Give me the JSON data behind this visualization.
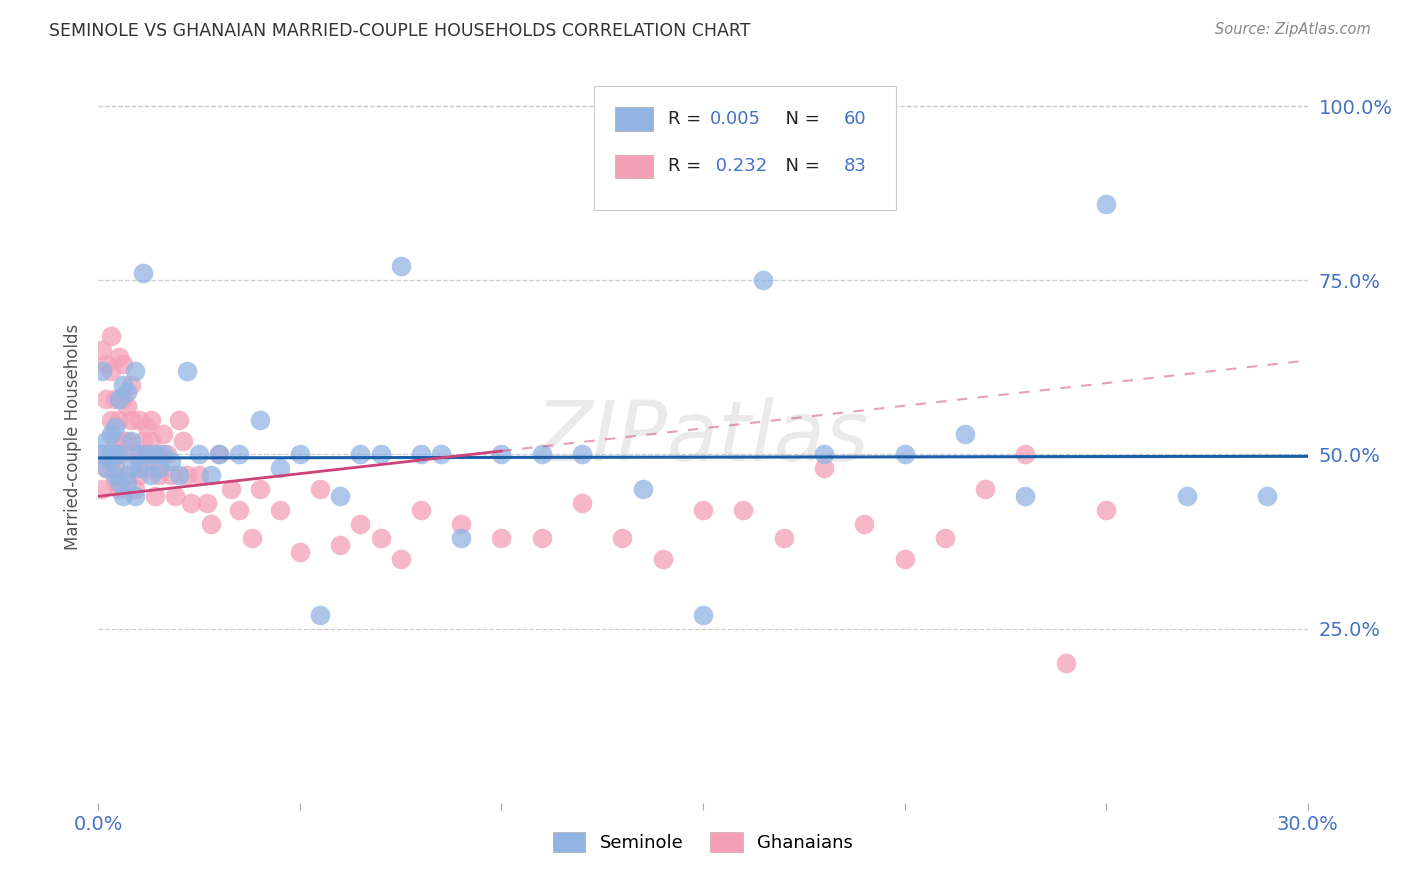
{
  "title": "SEMINOLE VS GHANAIAN MARRIED-COUPLE HOUSEHOLDS CORRELATION CHART",
  "source": "Source: ZipAtlas.com",
  "ylabel": "Married-couple Households",
  "xlim": [
    0.0,
    0.3
  ],
  "ylim": [
    0.0,
    1.05
  ],
  "ytick_labels": [
    "25.0%",
    "50.0%",
    "75.0%",
    "100.0%"
  ],
  "ytick_positions": [
    0.25,
    0.5,
    0.75,
    1.0
  ],
  "grid_color": "#cccccc",
  "background_color": "#ffffff",
  "seminole_color": "#92b4e3",
  "ghanaian_color": "#f4a0b8",
  "seminole_line_color": "#1a5fa8",
  "ghanaian_line_color": "#cc4477",
  "label_color": "#4472c4",
  "R_seminole": 0.005,
  "N_seminole": 60,
  "R_ghanaian": 0.232,
  "N_ghanaian": 83,
  "legend_label_seminole": "Seminole",
  "legend_label_ghanaian": "Ghanaians",
  "seminole_x": [
    0.001,
    0.001,
    0.002,
    0.002,
    0.003,
    0.003,
    0.003,
    0.004,
    0.004,
    0.004,
    0.005,
    0.005,
    0.005,
    0.006,
    0.006,
    0.007,
    0.007,
    0.008,
    0.008,
    0.009,
    0.009,
    0.01,
    0.01,
    0.011,
    0.012,
    0.013,
    0.014,
    0.015,
    0.016,
    0.018,
    0.02,
    0.022,
    0.025,
    0.028,
    0.03,
    0.035,
    0.04,
    0.045,
    0.05,
    0.055,
    0.06,
    0.065,
    0.07,
    0.075,
    0.08,
    0.085,
    0.09,
    0.1,
    0.11,
    0.12,
    0.135,
    0.15,
    0.165,
    0.18,
    0.2,
    0.215,
    0.23,
    0.25,
    0.27,
    0.29
  ],
  "seminole_y": [
    0.5,
    0.62,
    0.52,
    0.48,
    0.53,
    0.49,
    0.5,
    0.54,
    0.47,
    0.5,
    0.58,
    0.46,
    0.5,
    0.6,
    0.44,
    0.59,
    0.46,
    0.52,
    0.48,
    0.62,
    0.44,
    0.5,
    0.48,
    0.76,
    0.5,
    0.47,
    0.5,
    0.48,
    0.5,
    0.49,
    0.47,
    0.62,
    0.5,
    0.47,
    0.5,
    0.5,
    0.55,
    0.48,
    0.5,
    0.27,
    0.44,
    0.5,
    0.5,
    0.77,
    0.5,
    0.5,
    0.38,
    0.5,
    0.5,
    0.5,
    0.45,
    0.27,
    0.75,
    0.5,
    0.5,
    0.53,
    0.44,
    0.86,
    0.44,
    0.44
  ],
  "ghanaian_x": [
    0.001,
    0.001,
    0.001,
    0.002,
    0.002,
    0.002,
    0.003,
    0.003,
    0.003,
    0.003,
    0.004,
    0.004,
    0.004,
    0.004,
    0.005,
    0.005,
    0.005,
    0.005,
    0.005,
    0.006,
    0.006,
    0.006,
    0.007,
    0.007,
    0.007,
    0.008,
    0.008,
    0.009,
    0.009,
    0.01,
    0.01,
    0.01,
    0.011,
    0.011,
    0.012,
    0.012,
    0.013,
    0.013,
    0.014,
    0.014,
    0.015,
    0.015,
    0.016,
    0.017,
    0.018,
    0.019,
    0.02,
    0.021,
    0.022,
    0.023,
    0.025,
    0.027,
    0.028,
    0.03,
    0.033,
    0.035,
    0.038,
    0.04,
    0.045,
    0.05,
    0.055,
    0.06,
    0.065,
    0.07,
    0.075,
    0.08,
    0.09,
    0.1,
    0.11,
    0.12,
    0.13,
    0.14,
    0.15,
    0.16,
    0.17,
    0.18,
    0.19,
    0.2,
    0.21,
    0.22,
    0.23,
    0.24,
    0.25
  ],
  "ghanaian_y": [
    0.5,
    0.45,
    0.65,
    0.63,
    0.58,
    0.48,
    0.67,
    0.55,
    0.62,
    0.5,
    0.48,
    0.58,
    0.52,
    0.46,
    0.64,
    0.58,
    0.55,
    0.5,
    0.45,
    0.63,
    0.58,
    0.52,
    0.57,
    0.52,
    0.47,
    0.6,
    0.55,
    0.5,
    0.45,
    0.55,
    0.5,
    0.47,
    0.52,
    0.48,
    0.54,
    0.5,
    0.55,
    0.52,
    0.48,
    0.44,
    0.5,
    0.47,
    0.53,
    0.5,
    0.47,
    0.44,
    0.55,
    0.52,
    0.47,
    0.43,
    0.47,
    0.43,
    0.4,
    0.5,
    0.45,
    0.42,
    0.38,
    0.45,
    0.42,
    0.36,
    0.45,
    0.37,
    0.4,
    0.38,
    0.35,
    0.42,
    0.4,
    0.38,
    0.38,
    0.43,
    0.38,
    0.35,
    0.42,
    0.42,
    0.38,
    0.48,
    0.4,
    0.35,
    0.38,
    0.45,
    0.5,
    0.2,
    0.42
  ]
}
